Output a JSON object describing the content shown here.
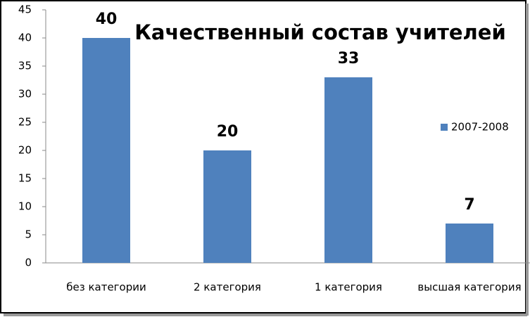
{
  "chart_data": {
    "type": "bar",
    "title": "Качественный состав учителей",
    "categories": [
      "без категории",
      "2 категория",
      "1 категория",
      "высшая категория"
    ],
    "series": [
      {
        "name": "2007-2008",
        "color": "#4f81bd",
        "values": [
          40,
          20,
          33,
          7
        ]
      }
    ],
    "ylim": [
      0,
      45
    ],
    "yticks": [
      0,
      5,
      10,
      15,
      20,
      25,
      30,
      35,
      40,
      45
    ],
    "grid": false,
    "legend": "right",
    "data_labels": true
  }
}
